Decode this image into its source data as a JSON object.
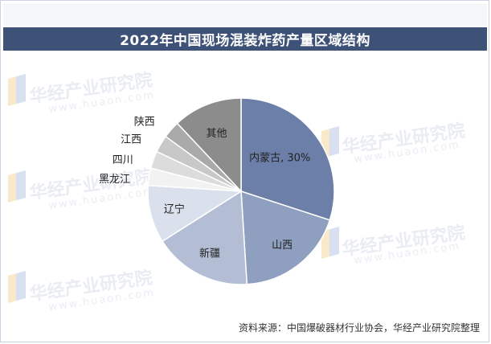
{
  "page": {
    "title": "2022年中国现场混装炸药产量区域结构",
    "source": "资料来源：中国爆破器材行业协会，华经产业研究院整理",
    "watermark": "华经产业研究院",
    "watermark_sub": "www.huaon.com"
  },
  "chart_data": {
    "type": "pie",
    "title": "2022年中国现场混装炸药产量区域结构",
    "start_angle_deg": 0,
    "direction": "clockwise",
    "slices": [
      {
        "label": "内蒙古",
        "value": 30,
        "display": "内蒙古, 30%",
        "color": "#6b7fa8"
      },
      {
        "label": "山西",
        "value": 19,
        "display": "山西",
        "color": "#8e9fc0"
      },
      {
        "label": "新疆",
        "value": 17,
        "display": "新疆",
        "color": "#b3bdd4"
      },
      {
        "label": "辽宁",
        "value": 10,
        "display": "辽宁",
        "color": "#dbe1ec"
      },
      {
        "label": "黑龙江",
        "value": 3,
        "display": "黑龙江",
        "color": "#f2f2f2"
      },
      {
        "label": "四川",
        "value": 3,
        "display": "四川",
        "color": "#dcdcdc"
      },
      {
        "label": "江西",
        "value": 3,
        "display": "江西",
        "color": "#c8c8c8"
      },
      {
        "label": "陕西",
        "value": 3,
        "display": "陕西",
        "color": "#aaaaaa"
      },
      {
        "label": "其他",
        "value": 12,
        "display": "其他",
        "color": "#8c8c8c"
      }
    ]
  }
}
